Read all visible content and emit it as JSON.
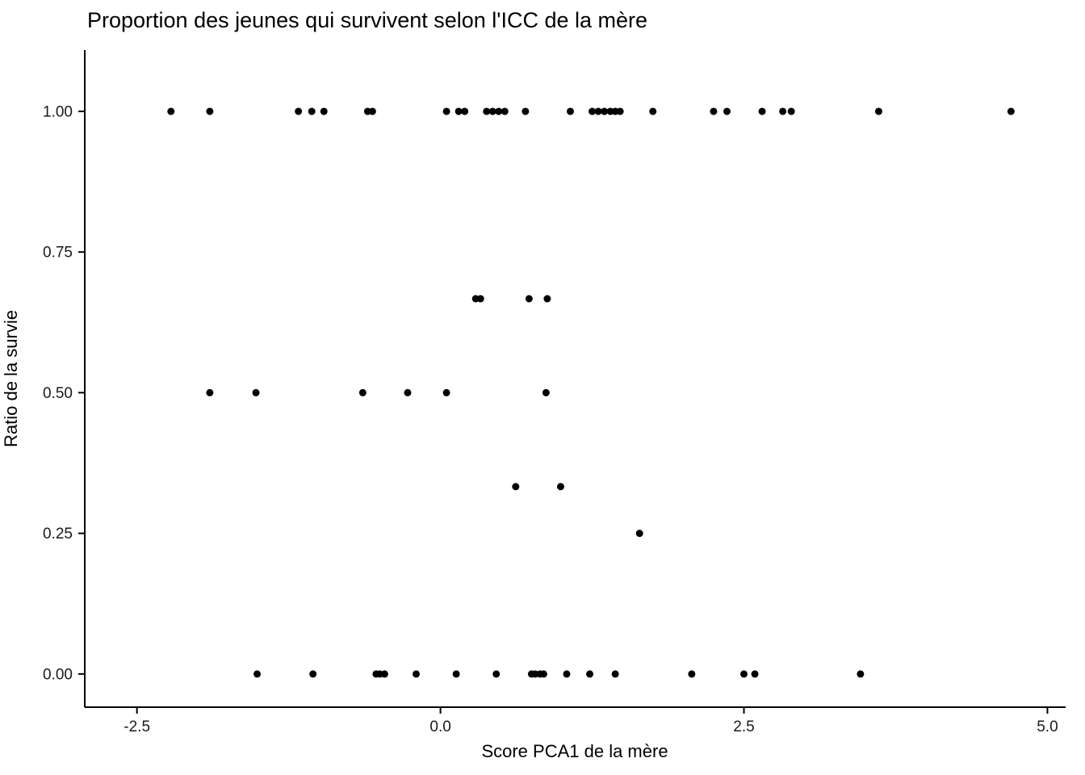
{
  "title": "Proportion des jeunes qui survivent selon l'ICC de la mère",
  "x_axis_title": "Score PCA1 de la mère",
  "y_axis_title": "Ratio de la survie",
  "point_color": "#000000",
  "axis_color": "#000000",
  "chart_data": {
    "type": "scatter",
    "title": "Proportion des jeunes qui survivent selon l'ICC de la mère",
    "xlabel": "Score PCA1 de la mère",
    "ylabel": "Ratio de la survie",
    "xlim": [
      -2.93,
      5.15
    ],
    "ylim": [
      -0.059,
      1.109
    ],
    "grid": false,
    "legend": "none",
    "x_ticks": [
      {
        "value": -2.5,
        "label": "-2.5"
      },
      {
        "value": 0.0,
        "label": "0.0"
      },
      {
        "value": 2.5,
        "label": "2.5"
      },
      {
        "value": 5.0,
        "label": "5.0"
      }
    ],
    "y_ticks": [
      {
        "value": 0.0,
        "label": "0.00"
      },
      {
        "value": 0.25,
        "label": "0.25"
      },
      {
        "value": 0.5,
        "label": "0.50"
      },
      {
        "value": 0.75,
        "label": "0.75"
      },
      {
        "value": 1.0,
        "label": "1.00"
      }
    ],
    "points": [
      [
        -2.22,
        1.0
      ],
      [
        -1.9,
        1.0
      ],
      [
        -1.17,
        1.0
      ],
      [
        -1.06,
        1.0
      ],
      [
        -0.96,
        1.0
      ],
      [
        -0.6,
        1.0
      ],
      [
        -0.56,
        1.0
      ],
      [
        0.05,
        1.0
      ],
      [
        0.15,
        1.0
      ],
      [
        0.2,
        1.0
      ],
      [
        0.38,
        1.0
      ],
      [
        0.43,
        1.0
      ],
      [
        0.48,
        1.0
      ],
      [
        0.53,
        1.0
      ],
      [
        0.7,
        1.0
      ],
      [
        1.07,
        1.0
      ],
      [
        1.25,
        1.0
      ],
      [
        1.3,
        1.0
      ],
      [
        1.35,
        1.0
      ],
      [
        1.4,
        1.0
      ],
      [
        1.44,
        1.0
      ],
      [
        1.48,
        1.0
      ],
      [
        1.75,
        1.0
      ],
      [
        2.25,
        1.0
      ],
      [
        2.36,
        1.0
      ],
      [
        2.65,
        1.0
      ],
      [
        2.82,
        1.0
      ],
      [
        2.89,
        1.0
      ],
      [
        3.61,
        1.0
      ],
      [
        4.7,
        1.0
      ],
      [
        0.29,
        0.667
      ],
      [
        0.33,
        0.667
      ],
      [
        0.73,
        0.667
      ],
      [
        0.88,
        0.667
      ],
      [
        -1.9,
        0.5
      ],
      [
        -1.52,
        0.5
      ],
      [
        -0.64,
        0.5
      ],
      [
        -0.27,
        0.5
      ],
      [
        0.05,
        0.5
      ],
      [
        0.87,
        0.5
      ],
      [
        0.62,
        0.333
      ],
      [
        0.99,
        0.333
      ],
      [
        1.64,
        0.25
      ],
      [
        -1.51,
        0.0
      ],
      [
        -1.05,
        0.0
      ],
      [
        -0.53,
        0.0
      ],
      [
        -0.5,
        0.0
      ],
      [
        -0.46,
        0.0
      ],
      [
        -0.2,
        0.0
      ],
      [
        0.13,
        0.0
      ],
      [
        0.46,
        0.0
      ],
      [
        0.75,
        0.0
      ],
      [
        0.78,
        0.0
      ],
      [
        0.82,
        0.0
      ],
      [
        0.85,
        0.0
      ],
      [
        1.04,
        0.0
      ],
      [
        1.23,
        0.0
      ],
      [
        1.44,
        0.0
      ],
      [
        2.07,
        0.0
      ],
      [
        2.5,
        0.0
      ],
      [
        2.59,
        0.0
      ],
      [
        3.46,
        0.0
      ]
    ]
  }
}
